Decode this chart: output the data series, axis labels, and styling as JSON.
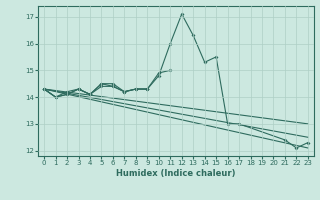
{
  "xlabel": "Humidex (Indice chaleur)",
  "x": [
    0,
    1,
    2,
    3,
    4,
    5,
    6,
    7,
    8,
    9,
    10,
    11,
    12,
    13,
    14,
    15,
    16,
    17,
    18,
    19,
    20,
    21,
    22,
    23
  ],
  "line1": [
    14.3,
    14.0,
    14.1,
    14.3,
    14.1,
    14.5,
    14.5,
    14.2,
    14.3,
    14.3,
    14.8,
    16.0,
    17.1,
    16.3,
    15.3,
    15.5,
    13.0,
    13.0,
    null,
    null,
    null,
    12.4,
    12.1,
    12.3
  ],
  "line2": [
    14.3,
    14.0,
    14.2,
    14.3,
    14.1,
    14.5,
    14.4,
    14.2,
    14.3,
    14.3,
    14.9,
    15.0,
    null,
    null,
    null,
    null,
    null,
    null,
    null,
    null,
    null,
    null,
    null,
    null
  ],
  "line3": [
    14.3,
    14.0,
    14.1,
    14.3,
    14.1,
    14.4,
    14.4,
    14.2,
    14.3,
    14.3,
    null,
    null,
    null,
    null,
    null,
    null,
    null,
    null,
    null,
    null,
    null,
    null,
    null,
    null
  ],
  "reg1_start": 14.3,
  "reg1_end": 12.1,
  "reg2_start": 14.3,
  "reg2_end": 13.0,
  "reg3_start": 14.3,
  "reg3_end": 12.5,
  "line_color": "#2e6b5e",
  "bg_color": "#cce8e0",
  "grid_color": "#aecfc6",
  "ylim": [
    11.8,
    17.4
  ],
  "yticks": [
    12,
    13,
    14,
    15,
    16,
    17
  ],
  "xlim": [
    -0.5,
    23.5
  ],
  "xticks": [
    0,
    1,
    2,
    3,
    4,
    5,
    6,
    7,
    8,
    9,
    10,
    11,
    12,
    13,
    14,
    15,
    16,
    17,
    18,
    19,
    20,
    21,
    22,
    23
  ]
}
